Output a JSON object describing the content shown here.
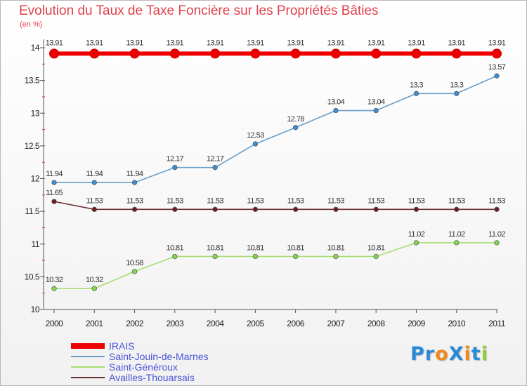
{
  "chart_data": {
    "type": "line",
    "title": "Evolution du Taux de Taxe Foncière sur les Propriétés Bâties",
    "ylabel": "(en %)",
    "xlabel": "",
    "x": [
      2000,
      2001,
      2002,
      2003,
      2004,
      2005,
      2006,
      2007,
      2008,
      2009,
      2010,
      2011
    ],
    "ylim": [
      10,
      14
    ],
    "yticks": [
      "10",
      "10.5",
      "11",
      "11.5",
      "12",
      "12.5",
      "13",
      "13.5",
      "14"
    ],
    "yticks_values": [
      10,
      10.5,
      11,
      11.5,
      12,
      12.5,
      13,
      13.5,
      14
    ],
    "series": [
      {
        "name": "IRAIS",
        "color": "#ee0000",
        "marker": "#ee0000",
        "values": [
          13.91,
          13.91,
          13.91,
          13.91,
          13.91,
          13.91,
          13.91,
          13.91,
          13.91,
          13.91,
          13.91,
          13.91
        ],
        "labels": [
          "13.91",
          "13.91",
          "13.91",
          "13.91",
          "13.91",
          "13.91",
          "13.91",
          "13.91",
          "13.91",
          "13.91",
          "13.91",
          "13.91"
        ]
      },
      {
        "name": "Saint-Jouin-de-Marnes",
        "color": "#6a9ec9",
        "marker": "#3d8ed5",
        "values": [
          11.94,
          11.94,
          11.94,
          12.17,
          12.17,
          12.53,
          12.78,
          13.04,
          13.04,
          13.3,
          13.3,
          13.57
        ],
        "labels": [
          "11.94",
          "11.94",
          "11.94",
          "12.17",
          "12.17",
          "12.53",
          "12.78",
          "13.04",
          "13.04",
          "13.3",
          "13.3",
          "13.57"
        ]
      },
      {
        "name": "Saint-Généroux",
        "color": "#a7de70",
        "marker": "#86d94d",
        "values": [
          10.32,
          10.32,
          10.58,
          10.81,
          10.81,
          10.81,
          10.81,
          10.81,
          10.81,
          11.02,
          11.02,
          11.02
        ],
        "labels": [
          "10.32",
          "10.32",
          "10.58",
          "10.81",
          "10.81",
          "10.81",
          "10.81",
          "10.81",
          "10.81",
          "11.02",
          "11.02",
          "11.02"
        ]
      },
      {
        "name": "Availles-Thouarsais",
        "color": "#6e2f34",
        "marker": "#6b1d22",
        "values": [
          11.65,
          11.53,
          11.53,
          11.53,
          11.53,
          11.53,
          11.53,
          11.53,
          11.53,
          11.53,
          11.53,
          11.53
        ],
        "labels": [
          "11.65",
          "11.53",
          "11.53",
          "11.53",
          "11.53",
          "11.53",
          "11.53",
          "11.53",
          "11.53",
          "11.53",
          "11.53",
          "11.53"
        ]
      }
    ],
    "legend_position": "bottom-left",
    "grid": false
  },
  "logo": {
    "text": "ProXiti",
    "letters": [
      {
        "ch": "P",
        "color": "#2a8ad7"
      },
      {
        "ch": "r",
        "color": "#2a8ad7"
      },
      {
        "ch": "o",
        "color": "#f08a1e"
      },
      {
        "ch": "X",
        "color": "#2a8ad7"
      },
      {
        "ch": "i",
        "color": "#f08a1e"
      },
      {
        "ch": "t",
        "color": "#2a8ad7"
      },
      {
        "ch": "i",
        "color": "#8ccf3a"
      }
    ]
  }
}
